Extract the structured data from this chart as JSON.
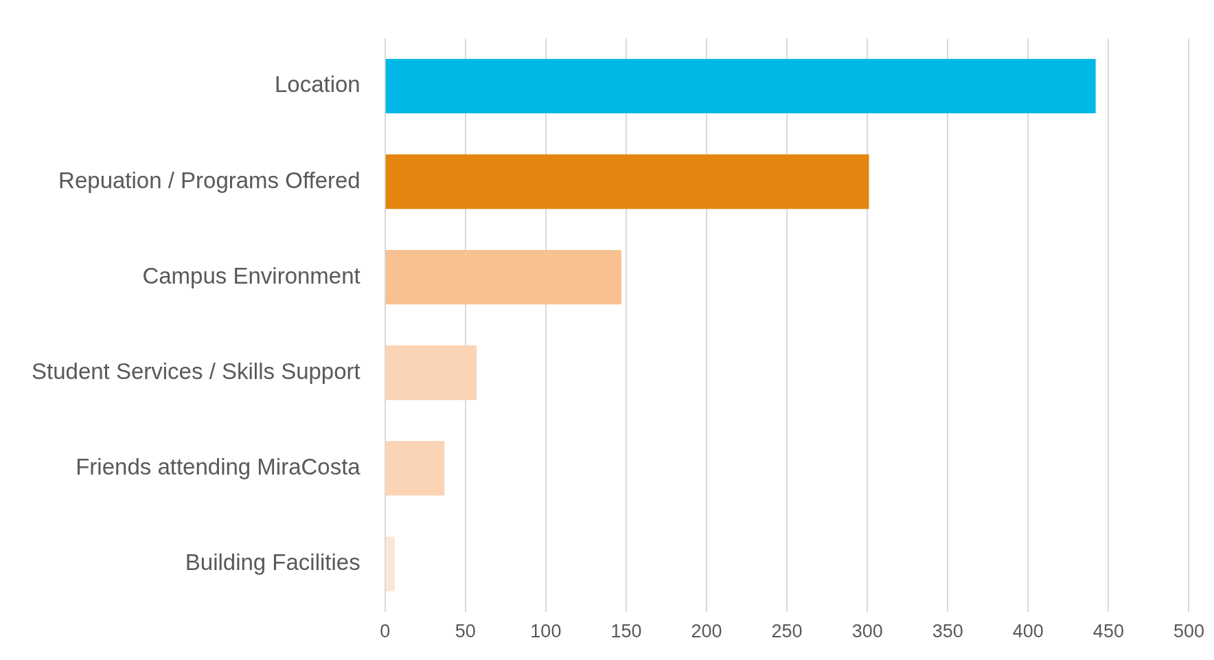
{
  "chart_data": {
    "type": "bar",
    "orientation": "horizontal",
    "categories": [
      "Location",
      "Repuation / Programs Offered",
      "Campus Environment",
      "Student Services / Skills Support",
      "Friends attending MiraCosta",
      "Building Facilities"
    ],
    "values": [
      442,
      301,
      147,
      57,
      37,
      6
    ],
    "colors": [
      "#00b8e6",
      "#e3850e",
      "#f9c192",
      "#fbd4b5",
      "#fbd4b5",
      "#fce6d6"
    ],
    "xlim": [
      0,
      500
    ],
    "xticks": [
      0,
      50,
      100,
      150,
      200,
      250,
      300,
      350,
      400,
      450,
      500
    ],
    "grid": "x"
  }
}
